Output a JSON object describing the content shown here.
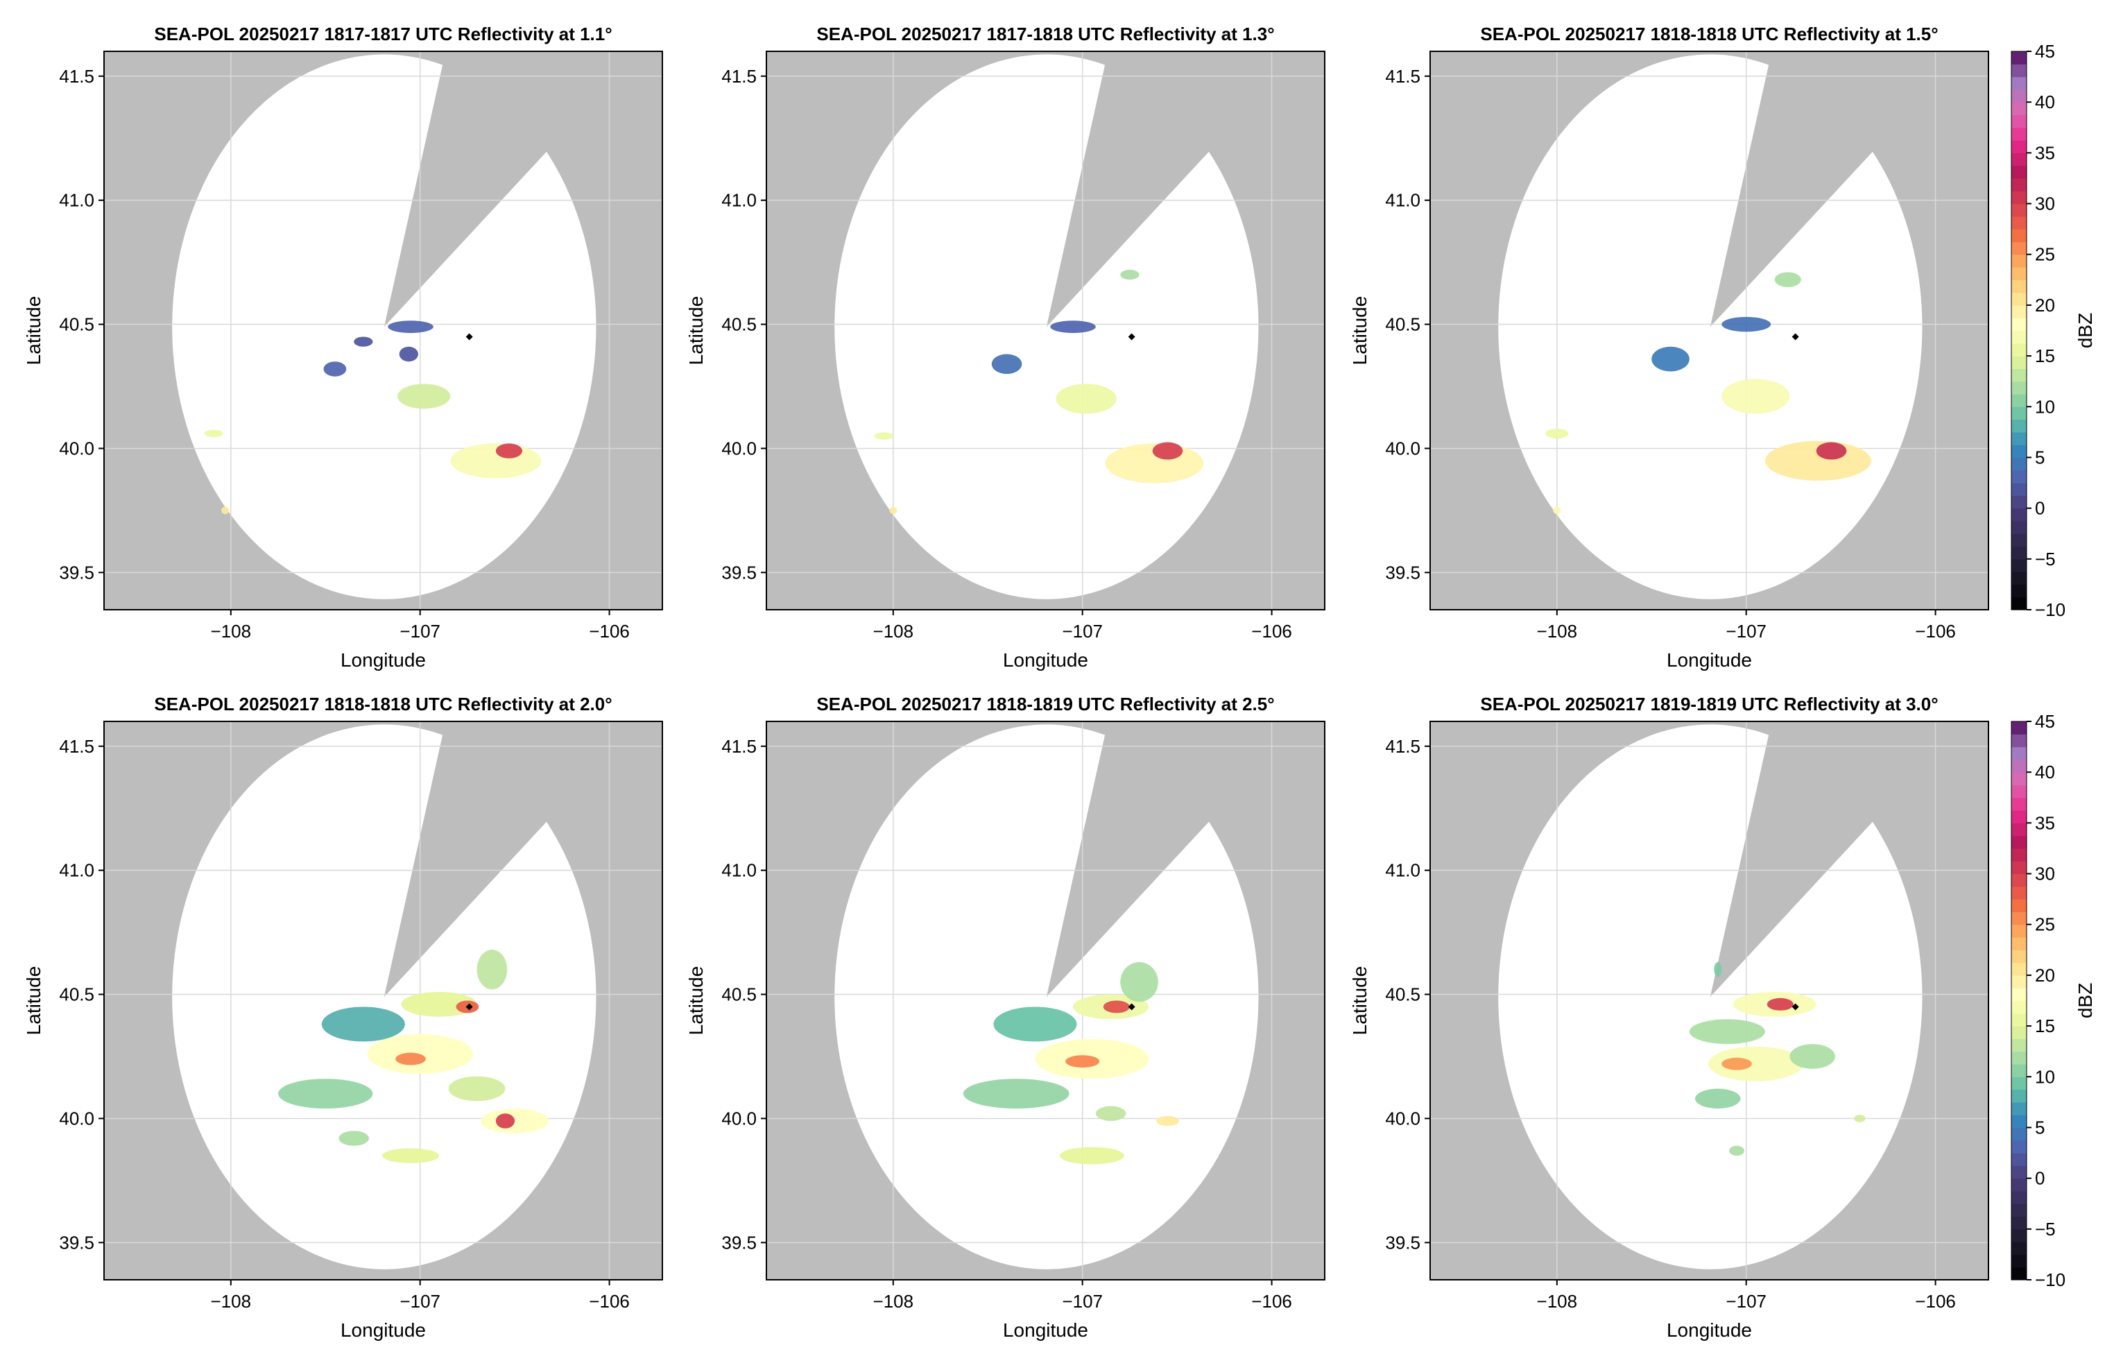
{
  "colors": {
    "no_coverage": "#bdbdbd",
    "coverage": "#ffffff",
    "grid": "#d9d9d9",
    "frame": "#000000",
    "radar_marker": "#000000"
  },
  "chart_data": [
    {
      "type": "heatmap",
      "title": "SEA-POL 20250217 1817-1817 UTC Reflectivity at 1.1°",
      "elevation_deg": 1.1,
      "xlabel": "Longitude",
      "ylabel": "Latitude",
      "xlim": [
        -108.67,
        -105.72
      ],
      "ylim": [
        39.35,
        41.6
      ],
      "xticks": [
        -108,
        -107,
        -106
      ],
      "xtick_labels": [
        "−108",
        "−107",
        "−106"
      ],
      "yticks": [
        39.5,
        40.0,
        40.5,
        41.0,
        41.5
      ],
      "ytick_labels": [
        "39.5",
        "40.0",
        "40.5",
        "41.0",
        "41.5"
      ],
      "grid": true,
      "radar_center": [
        -107.19,
        40.49
      ],
      "coverage_radius_deg": 1.12,
      "blocked_sector_deg": [
        16,
        50
      ],
      "marker": [
        -106.74,
        40.45
      ],
      "echoes": [
        {
          "lon": -107.05,
          "lat": 40.49,
          "rx": 0.12,
          "ry": 0.025,
          "dbz": 3
        },
        {
          "lon": -107.3,
          "lat": 40.43,
          "rx": 0.05,
          "ry": 0.02,
          "dbz": 2
        },
        {
          "lon": -107.45,
          "lat": 40.32,
          "rx": 0.06,
          "ry": 0.03,
          "dbz": 3
        },
        {
          "lon": -107.06,
          "lat": 40.38,
          "rx": 0.05,
          "ry": 0.03,
          "dbz": 2
        },
        {
          "lon": -106.98,
          "lat": 40.21,
          "rx": 0.14,
          "ry": 0.05,
          "dbz": 14
        },
        {
          "lon": -106.6,
          "lat": 39.95,
          "rx": 0.24,
          "ry": 0.07,
          "dbz": 17
        },
        {
          "lon": -106.53,
          "lat": 39.99,
          "rx": 0.07,
          "ry": 0.03,
          "dbz": 30
        },
        {
          "lon": -108.09,
          "lat": 40.06,
          "rx": 0.05,
          "ry": 0.015,
          "dbz": 16
        },
        {
          "lon": -108.03,
          "lat": 39.75,
          "rx": 0.02,
          "ry": 0.015,
          "dbz": 20
        }
      ]
    },
    {
      "type": "heatmap",
      "title": "SEA-POL 20250217 1817-1818 UTC Reflectivity at 1.3°",
      "elevation_deg": 1.3,
      "xlabel": "Longitude",
      "ylabel": "Latitude",
      "xlim": [
        -108.67,
        -105.72
      ],
      "ylim": [
        39.35,
        41.6
      ],
      "xticks": [
        -108,
        -107,
        -106
      ],
      "xtick_labels": [
        "−108",
        "−107",
        "−106"
      ],
      "yticks": [
        39.5,
        40.0,
        40.5,
        41.0,
        41.5
      ],
      "ytick_labels": [
        "39.5",
        "40.0",
        "40.5",
        "41.0",
        "41.5"
      ],
      "grid": true,
      "radar_center": [
        -107.19,
        40.49
      ],
      "coverage_radius_deg": 1.12,
      "blocked_sector_deg": [
        16,
        50
      ],
      "marker": [
        -106.74,
        40.45
      ],
      "echoes": [
        {
          "lon": -107.05,
          "lat": 40.49,
          "rx": 0.12,
          "ry": 0.025,
          "dbz": 3
        },
        {
          "lon": -107.4,
          "lat": 40.34,
          "rx": 0.08,
          "ry": 0.04,
          "dbz": 4
        },
        {
          "lon": -106.98,
          "lat": 40.2,
          "rx": 0.16,
          "ry": 0.06,
          "dbz": 16
        },
        {
          "lon": -106.62,
          "lat": 39.94,
          "rx": 0.26,
          "ry": 0.08,
          "dbz": 19
        },
        {
          "lon": -106.55,
          "lat": 39.99,
          "rx": 0.08,
          "ry": 0.035,
          "dbz": 30
        },
        {
          "lon": -106.75,
          "lat": 40.7,
          "rx": 0.05,
          "ry": 0.02,
          "dbz": 12
        },
        {
          "lon": -108.05,
          "lat": 40.05,
          "rx": 0.05,
          "ry": 0.015,
          "dbz": 16
        },
        {
          "lon": -108.0,
          "lat": 39.75,
          "rx": 0.02,
          "ry": 0.015,
          "dbz": 20
        }
      ]
    },
    {
      "type": "heatmap",
      "title": "SEA-POL 20250217 1818-1818 UTC Reflectivity at 1.5°",
      "elevation_deg": 1.5,
      "xlabel": "Longitude",
      "ylabel": "Latitude",
      "xlim": [
        -108.67,
        -105.72
      ],
      "ylim": [
        39.35,
        41.6
      ],
      "xticks": [
        -108,
        -107,
        -106
      ],
      "xtick_labels": [
        "−108",
        "−107",
        "−106"
      ],
      "yticks": [
        39.5,
        40.0,
        40.5,
        41.0,
        41.5
      ],
      "ytick_labels": [
        "39.5",
        "40.0",
        "40.5",
        "41.0",
        "41.5"
      ],
      "grid": true,
      "radar_center": [
        -107.19,
        40.49
      ],
      "coverage_radius_deg": 1.12,
      "blocked_sector_deg": [
        16,
        50
      ],
      "marker": [
        -106.74,
        40.45
      ],
      "echoes": [
        {
          "lon": -107.0,
          "lat": 40.5,
          "rx": 0.13,
          "ry": 0.03,
          "dbz": 4
        },
        {
          "lon": -107.4,
          "lat": 40.36,
          "rx": 0.1,
          "ry": 0.05,
          "dbz": 5
        },
        {
          "lon": -106.95,
          "lat": 40.21,
          "rx": 0.18,
          "ry": 0.07,
          "dbz": 17
        },
        {
          "lon": -106.62,
          "lat": 39.95,
          "rx": 0.28,
          "ry": 0.08,
          "dbz": 20
        },
        {
          "lon": -106.55,
          "lat": 39.99,
          "rx": 0.08,
          "ry": 0.035,
          "dbz": 31
        },
        {
          "lon": -106.78,
          "lat": 40.68,
          "rx": 0.07,
          "ry": 0.03,
          "dbz": 12
        },
        {
          "lon": -108.0,
          "lat": 40.06,
          "rx": 0.06,
          "ry": 0.02,
          "dbz": 16
        },
        {
          "lon": -108.0,
          "lat": 39.75,
          "rx": 0.02,
          "ry": 0.015,
          "dbz": 19
        }
      ]
    },
    {
      "type": "heatmap",
      "title": "SEA-POL 20250217 1818-1818 UTC Reflectivity at 2.0°",
      "elevation_deg": 2.0,
      "xlabel": "Longitude",
      "ylabel": "Latitude",
      "xlim": [
        -108.67,
        -105.72
      ],
      "ylim": [
        39.35,
        41.6
      ],
      "xticks": [
        -108,
        -107,
        -106
      ],
      "xtick_labels": [
        "−108",
        "−107",
        "−106"
      ],
      "yticks": [
        39.5,
        40.0,
        40.5,
        41.0,
        41.5
      ],
      "ytick_labels": [
        "39.5",
        "40.0",
        "40.5",
        "41.0",
        "41.5"
      ],
      "grid": true,
      "radar_center": [
        -107.19,
        40.49
      ],
      "coverage_radius_deg": 1.12,
      "blocked_sector_deg": [
        16,
        50
      ],
      "marker": [
        -106.74,
        40.45
      ],
      "echoes": [
        {
          "lon": -106.9,
          "lat": 40.46,
          "rx": 0.2,
          "ry": 0.05,
          "dbz": 15
        },
        {
          "lon": -106.75,
          "lat": 40.45,
          "rx": 0.06,
          "ry": 0.025,
          "dbz": 28
        },
        {
          "lon": -107.3,
          "lat": 40.38,
          "rx": 0.22,
          "ry": 0.07,
          "dbz": 8
        },
        {
          "lon": -107.0,
          "lat": 40.26,
          "rx": 0.28,
          "ry": 0.08,
          "dbz": 18
        },
        {
          "lon": -107.05,
          "lat": 40.24,
          "rx": 0.08,
          "ry": 0.025,
          "dbz": 26
        },
        {
          "lon": -106.7,
          "lat": 40.12,
          "rx": 0.15,
          "ry": 0.05,
          "dbz": 14
        },
        {
          "lon": -106.5,
          "lat": 39.99,
          "rx": 0.18,
          "ry": 0.05,
          "dbz": 18
        },
        {
          "lon": -106.55,
          "lat": 39.99,
          "rx": 0.05,
          "ry": 0.03,
          "dbz": 30
        },
        {
          "lon": -106.62,
          "lat": 40.6,
          "rx": 0.08,
          "ry": 0.08,
          "dbz": 13
        },
        {
          "lon": -107.5,
          "lat": 40.1,
          "rx": 0.25,
          "ry": 0.06,
          "dbz": 11
        },
        {
          "lon": -107.05,
          "lat": 39.85,
          "rx": 0.15,
          "ry": 0.03,
          "dbz": 15
        },
        {
          "lon": -107.35,
          "lat": 39.92,
          "rx": 0.08,
          "ry": 0.03,
          "dbz": 12
        }
      ]
    },
    {
      "type": "heatmap",
      "title": "SEA-POL 20250217 1818-1819 UTC Reflectivity at 2.5°",
      "elevation_deg": 2.5,
      "xlabel": "Longitude",
      "ylabel": "Latitude",
      "xlim": [
        -108.67,
        -105.72
      ],
      "ylim": [
        39.35,
        41.6
      ],
      "xticks": [
        -108,
        -107,
        -106
      ],
      "xtick_labels": [
        "−108",
        "−107",
        "−106"
      ],
      "yticks": [
        39.5,
        40.0,
        40.5,
        41.0,
        41.5
      ],
      "ytick_labels": [
        "39.5",
        "40.0",
        "40.5",
        "41.0",
        "41.5"
      ],
      "grid": true,
      "radar_center": [
        -107.19,
        40.49
      ],
      "coverage_radius_deg": 1.12,
      "blocked_sector_deg": [
        16,
        50
      ],
      "marker": [
        -106.74,
        40.45
      ],
      "echoes": [
        {
          "lon": -106.85,
          "lat": 40.45,
          "rx": 0.2,
          "ry": 0.05,
          "dbz": 16
        },
        {
          "lon": -106.82,
          "lat": 40.45,
          "rx": 0.07,
          "ry": 0.025,
          "dbz": 29
        },
        {
          "lon": -107.25,
          "lat": 40.38,
          "rx": 0.22,
          "ry": 0.07,
          "dbz": 9
        },
        {
          "lon": -106.95,
          "lat": 40.24,
          "rx": 0.3,
          "ry": 0.08,
          "dbz": 18
        },
        {
          "lon": -107.0,
          "lat": 40.23,
          "rx": 0.09,
          "ry": 0.025,
          "dbz": 26
        },
        {
          "lon": -106.7,
          "lat": 40.55,
          "rx": 0.1,
          "ry": 0.08,
          "dbz": 12
        },
        {
          "lon": -107.35,
          "lat": 40.1,
          "rx": 0.28,
          "ry": 0.06,
          "dbz": 11
        },
        {
          "lon": -106.95,
          "lat": 39.85,
          "rx": 0.17,
          "ry": 0.035,
          "dbz": 15
        },
        {
          "lon": -106.55,
          "lat": 39.99,
          "rx": 0.06,
          "ry": 0.02,
          "dbz": 20
        },
        {
          "lon": -106.85,
          "lat": 40.02,
          "rx": 0.08,
          "ry": 0.03,
          "dbz": 13
        }
      ]
    },
    {
      "type": "heatmap",
      "title": "SEA-POL 20250217 1819-1819 UTC Reflectivity at 3.0°",
      "elevation_deg": 3.0,
      "xlabel": "Longitude",
      "ylabel": "Latitude",
      "xlim": [
        -108.67,
        -105.72
      ],
      "ylim": [
        39.35,
        41.6
      ],
      "xticks": [
        -108,
        -107,
        -106
      ],
      "xtick_labels": [
        "−108",
        "−107",
        "−106"
      ],
      "yticks": [
        39.5,
        40.0,
        40.5,
        41.0,
        41.5
      ],
      "ytick_labels": [
        "39.5",
        "40.0",
        "40.5",
        "41.0",
        "41.5"
      ],
      "grid": true,
      "radar_center": [
        -107.19,
        40.49
      ],
      "coverage_radius_deg": 1.12,
      "blocked_sector_deg": [
        16,
        50
      ],
      "marker": [
        -106.74,
        40.45
      ],
      "echoes": [
        {
          "lon": -106.85,
          "lat": 40.46,
          "rx": 0.22,
          "ry": 0.05,
          "dbz": 17
        },
        {
          "lon": -106.82,
          "lat": 40.46,
          "rx": 0.07,
          "ry": 0.025,
          "dbz": 30
        },
        {
          "lon": -107.1,
          "lat": 40.35,
          "rx": 0.2,
          "ry": 0.05,
          "dbz": 12
        },
        {
          "lon": -106.95,
          "lat": 40.22,
          "rx": 0.25,
          "ry": 0.07,
          "dbz": 17
        },
        {
          "lon": -107.05,
          "lat": 40.22,
          "rx": 0.08,
          "ry": 0.025,
          "dbz": 25
        },
        {
          "lon": -106.65,
          "lat": 40.25,
          "rx": 0.12,
          "ry": 0.05,
          "dbz": 12
        },
        {
          "lon": -107.15,
          "lat": 40.08,
          "rx": 0.12,
          "ry": 0.04,
          "dbz": 11
        },
        {
          "lon": -107.15,
          "lat": 40.6,
          "rx": 0.02,
          "ry": 0.03,
          "dbz": 10
        },
        {
          "lon": -106.4,
          "lat": 40.0,
          "rx": 0.03,
          "ry": 0.015,
          "dbz": 14
        },
        {
          "lon": -107.05,
          "lat": 39.87,
          "rx": 0.04,
          "ry": 0.02,
          "dbz": 12
        }
      ]
    }
  ],
  "colorbars": [
    {
      "label": "dBZ",
      "range": [
        -10,
        45
      ],
      "ticks": [
        -10,
        -5,
        0,
        5,
        10,
        15,
        20,
        25,
        30,
        35,
        40,
        45
      ],
      "tick_labels": [
        "−10",
        "−5",
        "0",
        "5",
        "10",
        "15",
        "20",
        "25",
        "30",
        "35",
        "40",
        "45"
      ],
      "stops": [
        {
          "v": -10,
          "c": "#000000"
        },
        {
          "v": -5,
          "c": "#25203a"
        },
        {
          "v": 0,
          "c": "#4a3b7a"
        },
        {
          "v": 3,
          "c": "#4f64b0"
        },
        {
          "v": 6,
          "c": "#3288bd"
        },
        {
          "v": 9,
          "c": "#66c2a5"
        },
        {
          "v": 12,
          "c": "#abdda4"
        },
        {
          "v": 15,
          "c": "#e6f598"
        },
        {
          "v": 18,
          "c": "#ffffbf"
        },
        {
          "v": 21,
          "c": "#fee08b"
        },
        {
          "v": 24,
          "c": "#fdae61"
        },
        {
          "v": 27,
          "c": "#f46d43"
        },
        {
          "v": 30,
          "c": "#d53e4f"
        },
        {
          "v": 33,
          "c": "#b5195a"
        },
        {
          "v": 36,
          "c": "#e7298a"
        },
        {
          "v": 39,
          "c": "#df65b0"
        },
        {
          "v": 42,
          "c": "#9e7bc2"
        },
        {
          "v": 45,
          "c": "#54095f"
        }
      ]
    },
    {
      "label": "dBZ",
      "range": [
        -10,
        45
      ],
      "ticks": [
        -10,
        -5,
        0,
        5,
        10,
        15,
        20,
        25,
        30,
        35,
        40,
        45
      ],
      "tick_labels": [
        "−10",
        "−5",
        "0",
        "5",
        "10",
        "15",
        "20",
        "25",
        "30",
        "35",
        "40",
        "45"
      ],
      "stops": [
        {
          "v": -10,
          "c": "#000000"
        },
        {
          "v": -5,
          "c": "#25203a"
        },
        {
          "v": 0,
          "c": "#4a3b7a"
        },
        {
          "v": 3,
          "c": "#4f64b0"
        },
        {
          "v": 6,
          "c": "#3288bd"
        },
        {
          "v": 9,
          "c": "#66c2a5"
        },
        {
          "v": 12,
          "c": "#abdda4"
        },
        {
          "v": 15,
          "c": "#e6f598"
        },
        {
          "v": 18,
          "c": "#ffffbf"
        },
        {
          "v": 21,
          "c": "#fee08b"
        },
        {
          "v": 24,
          "c": "#fdae61"
        },
        {
          "v": 27,
          "c": "#f46d43"
        },
        {
          "v": 30,
          "c": "#d53e4f"
        },
        {
          "v": 33,
          "c": "#b5195a"
        },
        {
          "v": 36,
          "c": "#e7298a"
        },
        {
          "v": 39,
          "c": "#df65b0"
        },
        {
          "v": 42,
          "c": "#9e7bc2"
        },
        {
          "v": 45,
          "c": "#54095f"
        }
      ]
    }
  ]
}
